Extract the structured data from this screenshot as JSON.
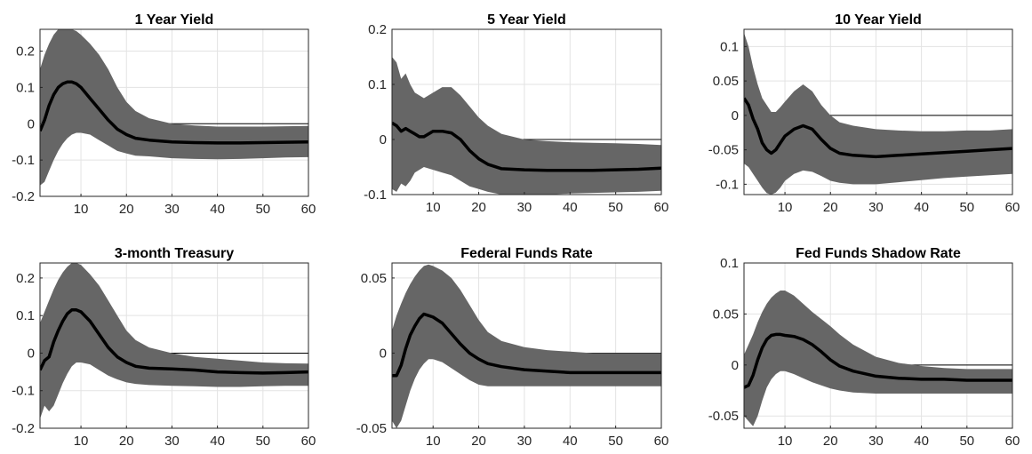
{
  "chart_data": [
    {
      "type": "area",
      "title": "1 Year Yield",
      "xlim": [
        1,
        60
      ],
      "ylim": [
        -0.2,
        0.26
      ],
      "xticks": [
        10,
        20,
        30,
        40,
        50,
        60
      ],
      "yticks": [
        -0.2,
        -0.1,
        0,
        0.1,
        0.2
      ],
      "ytick_labels": [
        "-0.2",
        "-0.1",
        "0",
        "0.1",
        "0.2"
      ],
      "grid": true,
      "zero_line": true,
      "x": [
        1,
        2,
        3,
        4,
        5,
        6,
        7,
        8,
        9,
        10,
        12,
        14,
        16,
        18,
        20,
        22,
        25,
        30,
        35,
        40,
        45,
        50,
        55,
        60
      ],
      "upper": [
        0.15,
        0.19,
        0.22,
        0.245,
        0.26,
        0.265,
        0.265,
        0.26,
        0.255,
        0.245,
        0.22,
        0.19,
        0.15,
        0.1,
        0.06,
        0.035,
        0.015,
        0.0,
        -0.005,
        -0.008,
        -0.008,
        -0.008,
        -0.007,
        -0.006
      ],
      "median": [
        -0.02,
        0.01,
        0.05,
        0.08,
        0.1,
        0.11,
        0.115,
        0.115,
        0.11,
        0.1,
        0.07,
        0.04,
        0.01,
        -0.015,
        -0.03,
        -0.04,
        -0.045,
        -0.05,
        -0.052,
        -0.053,
        -0.053,
        -0.052,
        -0.051,
        -0.05
      ],
      "lower": [
        -0.17,
        -0.16,
        -0.13,
        -0.1,
        -0.075,
        -0.055,
        -0.04,
        -0.03,
        -0.025,
        -0.025,
        -0.03,
        -0.045,
        -0.06,
        -0.075,
        -0.082,
        -0.088,
        -0.09,
        -0.095,
        -0.097,
        -0.098,
        -0.097,
        -0.095,
        -0.093,
        -0.092
      ]
    },
    {
      "type": "area",
      "title": "5 Year Yield",
      "xlim": [
        1,
        60
      ],
      "ylim": [
        -0.1,
        0.2
      ],
      "xticks": [
        10,
        20,
        30,
        40,
        50,
        60
      ],
      "yticks": [
        -0.1,
        0,
        0.1,
        0.2
      ],
      "ytick_labels": [
        "-0.1",
        "0",
        "0.1",
        "0.2"
      ],
      "grid": true,
      "zero_line": true,
      "x": [
        1,
        2,
        3,
        4,
        5,
        6,
        7,
        8,
        10,
        12,
        14,
        16,
        18,
        20,
        22,
        25,
        30,
        35,
        40,
        45,
        50,
        55,
        60
      ],
      "upper": [
        0.15,
        0.14,
        0.11,
        0.12,
        0.1,
        0.085,
        0.08,
        0.075,
        0.085,
        0.095,
        0.095,
        0.08,
        0.06,
        0.04,
        0.025,
        0.01,
        0.0,
        -0.003,
        -0.005,
        -0.006,
        -0.007,
        -0.008,
        -0.01
      ],
      "median": [
        0.03,
        0.025,
        0.015,
        0.02,
        0.015,
        0.01,
        0.005,
        0.005,
        0.015,
        0.015,
        0.012,
        0.0,
        -0.02,
        -0.035,
        -0.045,
        -0.053,
        -0.055,
        -0.056,
        -0.056,
        -0.056,
        -0.055,
        -0.054,
        -0.052
      ],
      "lower": [
        -0.09,
        -0.095,
        -0.08,
        -0.085,
        -0.075,
        -0.06,
        -0.055,
        -0.05,
        -0.055,
        -0.06,
        -0.065,
        -0.075,
        -0.085,
        -0.09,
        -0.095,
        -0.1,
        -0.1,
        -0.1,
        -0.098,
        -0.097,
        -0.096,
        -0.095,
        -0.093
      ]
    },
    {
      "type": "area",
      "title": "10 Year Yield",
      "xlim": [
        1,
        60
      ],
      "ylim": [
        -0.115,
        0.125
      ],
      "xticks": [
        10,
        20,
        30,
        40,
        50,
        60
      ],
      "yticks": [
        -0.1,
        -0.05,
        0,
        0.05,
        0.1
      ],
      "ytick_labels": [
        "-0.1",
        "-0.05",
        "0",
        "0.05",
        "0.1"
      ],
      "grid": true,
      "zero_line": true,
      "x": [
        1,
        2,
        3,
        4,
        5,
        6,
        7,
        8,
        9,
        10,
        12,
        14,
        16,
        18,
        20,
        22,
        25,
        30,
        35,
        40,
        45,
        50,
        55,
        60
      ],
      "upper": [
        0.12,
        0.1,
        0.07,
        0.045,
        0.025,
        0.015,
        0.005,
        0.005,
        0.012,
        0.02,
        0.035,
        0.045,
        0.035,
        0.015,
        0.0,
        -0.01,
        -0.015,
        -0.02,
        -0.022,
        -0.023,
        -0.023,
        -0.022,
        -0.022,
        -0.02
      ],
      "median": [
        0.025,
        0.015,
        -0.005,
        -0.02,
        -0.04,
        -0.05,
        -0.055,
        -0.05,
        -0.04,
        -0.03,
        -0.02,
        -0.015,
        -0.02,
        -0.035,
        -0.048,
        -0.055,
        -0.058,
        -0.06,
        -0.058,
        -0.056,
        -0.054,
        -0.052,
        -0.05,
        -0.048
      ],
      "lower": [
        -0.07,
        -0.075,
        -0.085,
        -0.095,
        -0.105,
        -0.113,
        -0.115,
        -0.112,
        -0.105,
        -0.095,
        -0.085,
        -0.08,
        -0.082,
        -0.088,
        -0.095,
        -0.098,
        -0.1,
        -0.1,
        -0.097,
        -0.094,
        -0.091,
        -0.089,
        -0.087,
        -0.085
      ]
    },
    {
      "type": "area",
      "title": "3-month Treasury",
      "xlim": [
        1,
        60
      ],
      "ylim": [
        -0.2,
        0.24
      ],
      "xticks": [
        10,
        20,
        30,
        40,
        50,
        60
      ],
      "yticks": [
        -0.2,
        -0.1,
        0,
        0.1,
        0.2
      ],
      "ytick_labels": [
        "-0.2",
        "-0.1",
        "0",
        "0.1",
        "0.2"
      ],
      "grid": true,
      "zero_line": true,
      "x": [
        1,
        2,
        3,
        4,
        5,
        6,
        7,
        8,
        9,
        10,
        12,
        14,
        16,
        18,
        20,
        22,
        25,
        30,
        35,
        40,
        45,
        50,
        55,
        60
      ],
      "upper": [
        0.08,
        0.11,
        0.14,
        0.17,
        0.195,
        0.215,
        0.23,
        0.24,
        0.24,
        0.235,
        0.21,
        0.18,
        0.14,
        0.1,
        0.06,
        0.035,
        0.015,
        0.0,
        -0.01,
        -0.015,
        -0.02,
        -0.025,
        -0.027,
        -0.028
      ],
      "median": [
        -0.045,
        -0.02,
        -0.01,
        0.03,
        0.06,
        0.085,
        0.105,
        0.115,
        0.115,
        0.11,
        0.085,
        0.05,
        0.015,
        -0.01,
        -0.025,
        -0.035,
        -0.04,
        -0.042,
        -0.045,
        -0.05,
        -0.052,
        -0.053,
        -0.052,
        -0.05
      ],
      "lower": [
        -0.175,
        -0.14,
        -0.155,
        -0.14,
        -0.11,
        -0.08,
        -0.055,
        -0.035,
        -0.025,
        -0.025,
        -0.03,
        -0.045,
        -0.06,
        -0.07,
        -0.078,
        -0.082,
        -0.085,
        -0.087,
        -0.088,
        -0.09,
        -0.09,
        -0.088,
        -0.087,
        -0.087
      ]
    },
    {
      "type": "area",
      "title": "Federal Funds Rate",
      "xlim": [
        1,
        60
      ],
      "ylim": [
        -0.05,
        0.06
      ],
      "xticks": [
        10,
        20,
        30,
        40,
        50,
        60
      ],
      "yticks": [
        -0.05,
        0,
        0.05
      ],
      "ytick_labels": [
        "-0.05",
        "0",
        "0.05"
      ],
      "grid": true,
      "zero_line": true,
      "x": [
        1,
        2,
        3,
        4,
        5,
        6,
        7,
        8,
        9,
        10,
        12,
        14,
        16,
        18,
        20,
        22,
        25,
        30,
        35,
        40,
        45,
        50,
        55,
        60
      ],
      "upper": [
        0.015,
        0.025,
        0.033,
        0.04,
        0.046,
        0.051,
        0.055,
        0.058,
        0.059,
        0.058,
        0.055,
        0.05,
        0.042,
        0.032,
        0.022,
        0.014,
        0.008,
        0.004,
        0.002,
        0.001,
        0.0,
        0.0,
        0.0,
        0.0
      ],
      "median": [
        -0.015,
        -0.015,
        -0.008,
        0.003,
        0.012,
        0.018,
        0.023,
        0.026,
        0.025,
        0.024,
        0.02,
        0.013,
        0.006,
        0.0,
        -0.004,
        -0.007,
        -0.009,
        -0.011,
        -0.012,
        -0.013,
        -0.013,
        -0.013,
        -0.013,
        -0.013
      ],
      "lower": [
        -0.045,
        -0.05,
        -0.045,
        -0.035,
        -0.025,
        -0.017,
        -0.011,
        -0.007,
        -0.004,
        -0.004,
        -0.006,
        -0.01,
        -0.014,
        -0.018,
        -0.021,
        -0.022,
        -0.022,
        -0.022,
        -0.022,
        -0.022,
        -0.022,
        -0.022,
        -0.022,
        -0.022
      ]
    },
    {
      "type": "area",
      "title": "Fed Funds Shadow Rate",
      "xlim": [
        1,
        60
      ],
      "ylim": [
        -0.062,
        0.1
      ],
      "xticks": [
        10,
        20,
        30,
        40,
        50,
        60
      ],
      "yticks": [
        -0.05,
        0,
        0.05,
        0.1
      ],
      "ytick_labels": [
        "-0.05",
        "0",
        "0.05",
        "0.1"
      ],
      "grid": true,
      "zero_line": true,
      "x": [
        1,
        2,
        3,
        4,
        5,
        6,
        7,
        8,
        9,
        10,
        12,
        14,
        16,
        18,
        20,
        22,
        25,
        30,
        35,
        40,
        45,
        50,
        55,
        60
      ],
      "upper": [
        0.01,
        0.02,
        0.03,
        0.042,
        0.052,
        0.06,
        0.066,
        0.07,
        0.073,
        0.073,
        0.068,
        0.06,
        0.052,
        0.045,
        0.038,
        0.03,
        0.02,
        0.008,
        0.002,
        -0.001,
        -0.003,
        -0.004,
        -0.004,
        -0.004
      ],
      "median": [
        -0.022,
        -0.02,
        -0.01,
        0.005,
        0.017,
        0.025,
        0.029,
        0.03,
        0.03,
        0.029,
        0.028,
        0.025,
        0.02,
        0.013,
        0.005,
        -0.001,
        -0.006,
        -0.011,
        -0.013,
        -0.014,
        -0.014,
        -0.015,
        -0.015,
        -0.015
      ],
      "lower": [
        -0.05,
        -0.055,
        -0.06,
        -0.05,
        -0.035,
        -0.022,
        -0.014,
        -0.009,
        -0.006,
        -0.006,
        -0.009,
        -0.013,
        -0.017,
        -0.02,
        -0.023,
        -0.025,
        -0.027,
        -0.028,
        -0.028,
        -0.028,
        -0.028,
        -0.028,
        -0.028,
        -0.028
      ]
    }
  ]
}
